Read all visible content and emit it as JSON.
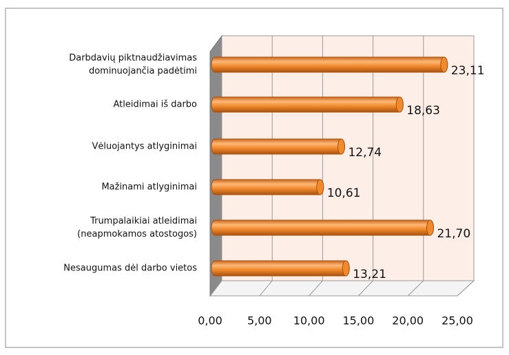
{
  "chart_data": {
    "type": "bar3d-horizontal",
    "categories": [
      [
        "Darbdavių piktnaudžiavimas",
        "dominuojančia padėtimi"
      ],
      [
        "Atleidimai iš darbo"
      ],
      [
        "Vėluojantys atlyginimai"
      ],
      [
        "Mažinami atlyginimai"
      ],
      [
        "Trumpalaikiai atleidimai",
        "(neapmokamos atostogos)"
      ],
      [
        "Nesaugumas dėl darbo vietos"
      ]
    ],
    "values": [
      23.11,
      18.63,
      12.74,
      10.61,
      21.7,
      13.21
    ],
    "value_labels": [
      "23,11",
      "18,63",
      "12,74",
      "10,61",
      "21,70",
      "13,21"
    ],
    "color": "#f08a2c",
    "xlim": [
      0,
      25
    ],
    "xticks": [
      {
        "value": 0,
        "label": "0,00"
      },
      {
        "value": 5,
        "label": "5,00"
      },
      {
        "value": 10,
        "label": "10,00"
      },
      {
        "value": 15,
        "label": "15,00"
      },
      {
        "value": 20,
        "label": "20,00"
      },
      {
        "value": 25,
        "label": "25,00"
      }
    ],
    "grid": true
  }
}
